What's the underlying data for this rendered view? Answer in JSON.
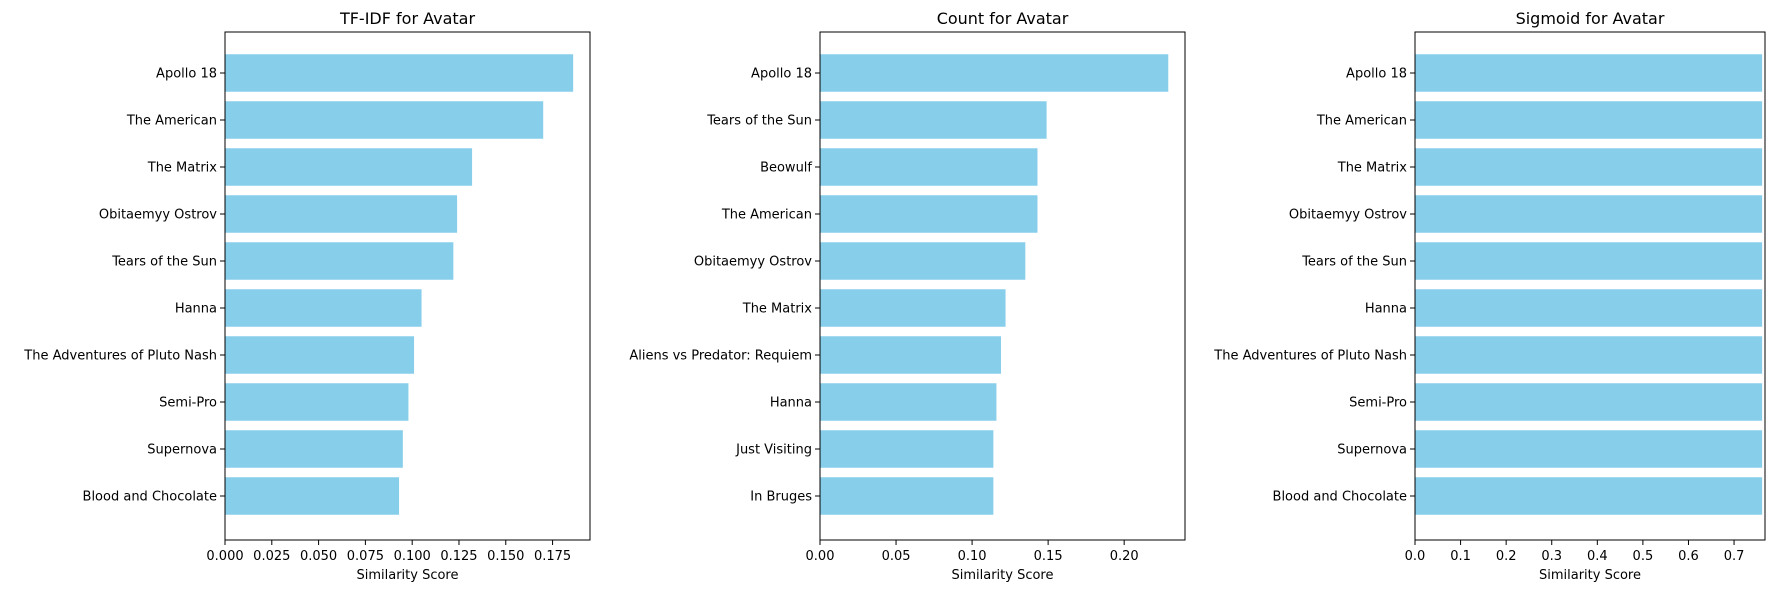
{
  "colors": {
    "bar": "#87CEEB",
    "axis": "#000000",
    "background": "#ffffff"
  },
  "chart_data": [
    {
      "type": "bar",
      "orientation": "horizontal",
      "title": "TF-IDF for Avatar",
      "xlabel": "Similarity Score",
      "ylabel": "",
      "xlim": [
        0,
        0.195
      ],
      "xticks": [
        0,
        0.025,
        0.05,
        0.075,
        0.1,
        0.125,
        0.15,
        0.175
      ],
      "xtick_labels": [
        "0.000",
        "0.025",
        "0.050",
        "0.075",
        "0.100",
        "0.125",
        "0.150",
        "0.175"
      ],
      "categories": [
        "Apollo 18",
        "The American",
        "The Matrix",
        "Obitaemyy Ostrov",
        "Tears of the Sun",
        "Hanna",
        "The Adventures of Pluto Nash",
        "Semi-Pro",
        "Supernova",
        "Blood and Chocolate"
      ],
      "values": [
        0.186,
        0.17,
        0.132,
        0.124,
        0.122,
        0.105,
        0.101,
        0.098,
        0.095,
        0.093
      ],
      "grid": false
    },
    {
      "type": "bar",
      "orientation": "horizontal",
      "title": "Count for Avatar",
      "xlabel": "Similarity Score",
      "ylabel": "",
      "xlim": [
        0,
        0.24
      ],
      "xticks": [
        0,
        0.05,
        0.1,
        0.15,
        0.2
      ],
      "xtick_labels": [
        "0.00",
        "0.05",
        "0.10",
        "0.15",
        "0.20"
      ],
      "categories": [
        "Apollo 18",
        "Tears of the Sun",
        "Beowulf",
        "The American",
        "Obitaemyy Ostrov",
        "The Matrix",
        "Aliens vs Predator: Requiem",
        "Hanna",
        "Just Visiting",
        "In Bruges"
      ],
      "values": [
        0.229,
        0.149,
        0.143,
        0.143,
        0.135,
        0.122,
        0.119,
        0.116,
        0.114,
        0.114
      ],
      "grid": false
    },
    {
      "type": "bar",
      "orientation": "horizontal",
      "title": "Sigmoid for Avatar",
      "xlabel": "Similarity Score",
      "ylabel": "",
      "xlim": [
        0,
        0.7679
      ],
      "xticks": [
        0,
        0.1,
        0.2,
        0.3,
        0.4,
        0.5,
        0.6,
        0.7
      ],
      "xtick_labels": [
        "0.0",
        "0.1",
        "0.2",
        "0.3",
        "0.4",
        "0.5",
        "0.6",
        "0.7"
      ],
      "categories": [
        "Apollo 18",
        "The American",
        "The Matrix",
        "Obitaemyy Ostrov",
        "Tears of the Sun",
        "Hanna",
        "The Adventures of Pluto Nash",
        "Semi-Pro",
        "Supernova",
        "Blood and Chocolate"
      ],
      "values": [
        0.7616,
        0.7616,
        0.7616,
        0.7616,
        0.7616,
        0.7616,
        0.7616,
        0.7616,
        0.7616,
        0.7616
      ],
      "grid": false
    }
  ]
}
